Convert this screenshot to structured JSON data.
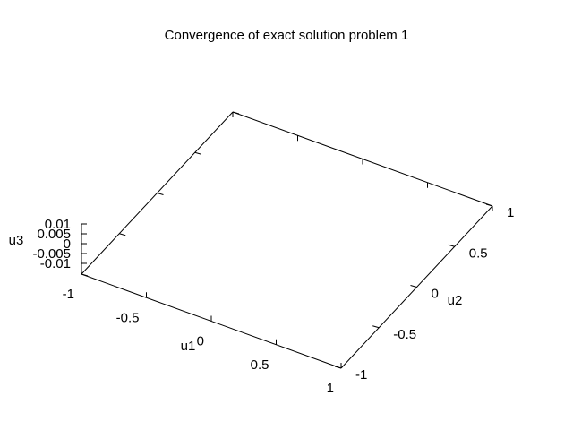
{
  "chart_data": {
    "type": "surface",
    "title": "Convergence of exact solution problem 1",
    "xlabel": "u1",
    "ylabel": "u2",
    "zlabel": "u3",
    "xlim": [
      -1,
      1
    ],
    "ylim": [
      -1,
      1
    ],
    "zlim": [
      -0.01,
      0.01
    ],
    "x_ticks": [
      -1,
      -0.5,
      0,
      0.5,
      1
    ],
    "y_ticks": [
      -1,
      -0.5,
      0,
      0.5,
      1
    ],
    "z_ticks": [
      -0.01,
      -0.005,
      0,
      0.005,
      0.01
    ],
    "x_tick_labels": [
      "-1",
      "-0.5",
      "0",
      "0.5",
      "1"
    ],
    "y_tick_labels": [
      "-1",
      "-0.5",
      "0",
      "0.5",
      "1"
    ],
    "z_tick_labels": [
      "-0.01",
      "-0.005",
      "0",
      "0.005",
      "0.01"
    ],
    "series": []
  }
}
